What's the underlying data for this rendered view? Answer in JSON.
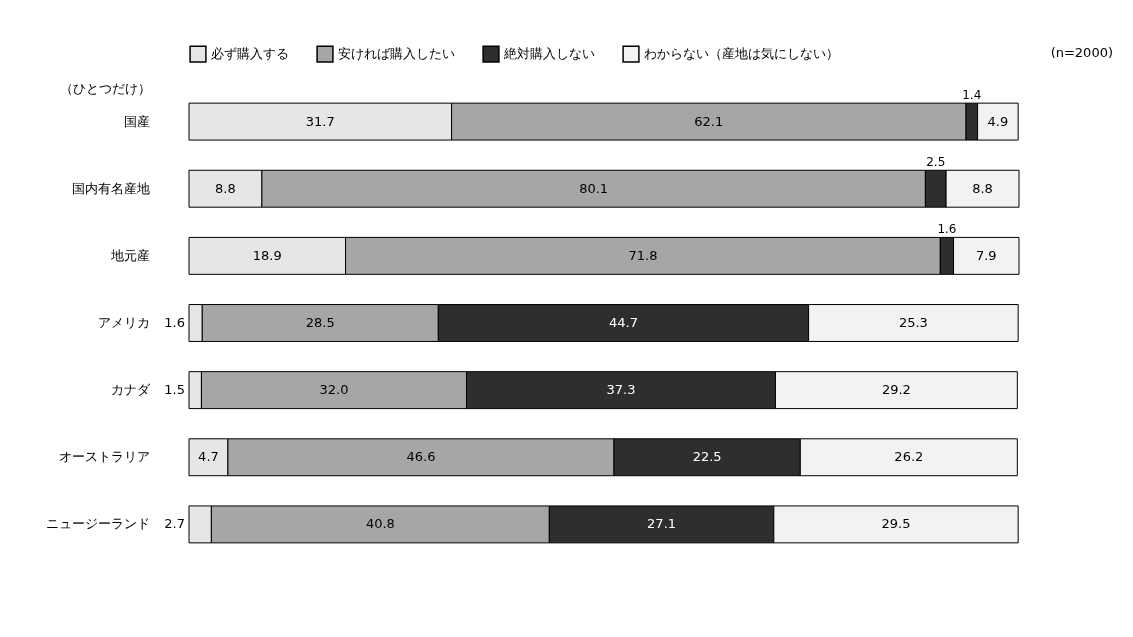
{
  "chart_data": {
    "type": "bar",
    "orientation": "horizontal",
    "stacked": true,
    "legend": "top",
    "grid": false,
    "categories": [
      "国産",
      "国内有名産地",
      "地元産",
      "アメリカ",
      "カナダ",
      "オーストラリア",
      "ニュージーランド"
    ],
    "series": [
      {
        "name": "必ず購入する",
        "color": "#e6e6e6",
        "values": [
          31.7,
          8.8,
          18.9,
          1.6,
          1.5,
          4.7,
          2.7
        ],
        "value_labels": [
          "31.7",
          "8.8",
          "18.9",
          "1.6",
          "1.5",
          "4.7",
          "2.7"
        ]
      },
      {
        "name": "安ければ購入したい",
        "color": "#a6a6a6",
        "values": [
          62.1,
          80.1,
          71.8,
          28.5,
          32.0,
          46.6,
          40.8
        ],
        "value_labels": [
          "62.1",
          "80.1",
          "71.8",
          "28.5",
          "32.0",
          "46.6",
          "40.8"
        ]
      },
      {
        "name": "絶対購入しない",
        "color": "#2e2e2e",
        "values": [
          1.4,
          2.5,
          1.6,
          44.7,
          37.3,
          22.5,
          27.1
        ],
        "value_labels": [
          "1.4",
          "2.5",
          "1.6",
          "44.7",
          "37.3",
          "22.5",
          "27.1"
        ]
      },
      {
        "name": "わからない（産地は気にしない）",
        "color": "#f2f2f2",
        "values": [
          4.9,
          8.8,
          7.9,
          25.3,
          29.2,
          26.2,
          29.5
        ],
        "value_labels": [
          "4.9",
          "8.8",
          "7.9",
          "25.3",
          "29.2",
          "26.2",
          "29.5"
        ]
      }
    ],
    "annotations": [
      "（ひとつだけ）",
      "(n=2000)"
    ]
  }
}
